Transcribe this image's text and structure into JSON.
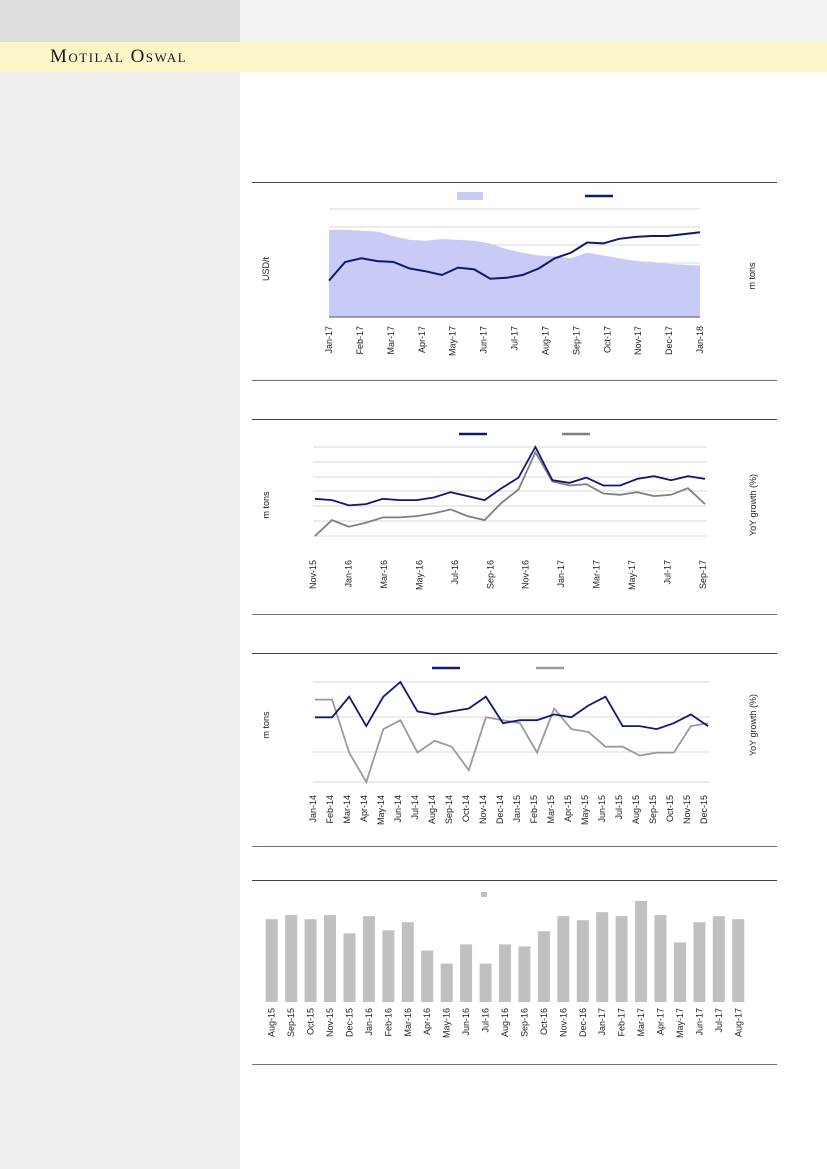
{
  "header": {
    "brand": "Motilal Oswal"
  },
  "charts": [
    {
      "type": "line+area",
      "ylabel_left": "USD/t",
      "ylabel_right": "m tons",
      "x_ticks": [
        "Jan-17",
        "Feb-17",
        "Mar-17",
        "Apr-17",
        "May-17",
        "Jun-17",
        "Jul-17",
        "Aug-17",
        "Sep-17",
        "Oct-17",
        "Nov-17",
        "Dec-17",
        "Jan-18"
      ],
      "line_color": "#0d1a6e",
      "area_color": "#c9cbf7",
      "line_values": [
        0.5,
        0.7,
        0.74,
        0.71,
        0.7,
        0.63,
        0.6,
        0.56,
        0.64,
        0.62,
        0.52,
        0.53,
        0.56,
        0.63,
        0.74,
        0.8,
        0.91,
        0.9,
        0.95,
        0.97,
        0.98,
        0.98,
        1.0,
        1.02
      ],
      "area_values": [
        0.95,
        0.95,
        0.94,
        0.93,
        0.88,
        0.84,
        0.83,
        0.85,
        0.84,
        0.83,
        0.8,
        0.74,
        0.7,
        0.67,
        0.66,
        0.64,
        0.7,
        0.67,
        0.64,
        0.61,
        0.6,
        0.58,
        0.57,
        0.56
      ]
    },
    {
      "type": "line",
      "ylabel_left": "m tons",
      "ylabel_right": "YoY growth (%)",
      "x_ticks": [
        "Nov-15",
        "Jan-16",
        "Mar-16",
        "May-16",
        "Jul-16",
        "Sep-16",
        "Nov-16",
        "Jan-17",
        "Mar-17",
        "May-17",
        "Jul-17",
        "Sep-17"
      ],
      "series": [
        {
          "color": "#0d1a6e",
          "values": [
            28,
            27,
            23,
            24,
            28,
            27,
            27,
            29,
            33,
            30,
            27,
            36,
            44,
            67,
            42,
            40,
            44,
            38,
            38,
            43,
            45,
            42,
            45,
            43
          ]
        },
        {
          "color": "#808080",
          "values": [
            0,
            12,
            7,
            10,
            14,
            14,
            15,
            17,
            20,
            15,
            12,
            25,
            35,
            63,
            41,
            38,
            39,
            32,
            31,
            33,
            30,
            31,
            36,
            24
          ]
        }
      ]
    },
    {
      "type": "line",
      "ylabel_left": "m tons",
      "ylabel_right": "YoY growth (%)",
      "x_ticks": [
        "Jan-14",
        "Feb-14",
        "Mar-14",
        "Apr-14",
        "May-14",
        "Jun-14",
        "Jul-14",
        "Aug-14",
        "Sep-14",
        "Oct-14",
        "Nov-14",
        "Dec-14",
        "Jan-15",
        "Feb-15",
        "Mar-15",
        "Apr-15",
        "May-15",
        "Jun-15",
        "Jul-15",
        "Aug-15",
        "Sep-15",
        "Oct-15",
        "Nov-15",
        "Dec-15"
      ],
      "series": [
        {
          "color": "#0d1a6e",
          "values": [
            62,
            62,
            69,
            59,
            69,
            74,
            64,
            63,
            64,
            65,
            69,
            60,
            61,
            61,
            63,
            62,
            66,
            69,
            59,
            59,
            58,
            60,
            63,
            59
          ]
        },
        {
          "color": "#9a9a9a",
          "values": [
            68,
            68,
            50,
            40,
            58,
            61,
            50,
            54,
            52,
            44,
            62,
            61,
            60,
            50,
            65,
            58,
            57,
            52,
            52,
            49,
            50,
            50,
            59,
            60
          ]
        }
      ]
    },
    {
      "type": "bar",
      "bar_color": "#c0c0c0",
      "categories": [
        "Aug-15",
        "Sep-15",
        "Oct-15",
        "Nov-15",
        "Dec-15",
        "Jan-16",
        "Feb-16",
        "Mar-16",
        "Apr-16",
        "May-16",
        "Jun-16",
        "Jul-16",
        "Aug-16",
        "Sep-16",
        "Oct-16",
        "Nov-16",
        "Dec-16",
        "Jan-17",
        "Feb-17",
        "Mar-17",
        "Apr-17",
        "May-17",
        "Jun-17",
        "Jul-17",
        "Aug-17"
      ],
      "values": [
        82,
        86,
        82,
        86,
        68,
        85,
        71,
        79,
        51,
        38,
        57,
        38,
        57,
        55,
        70,
        85,
        81,
        89,
        85,
        100,
        86,
        59,
        79,
        85,
        82
      ]
    }
  ]
}
